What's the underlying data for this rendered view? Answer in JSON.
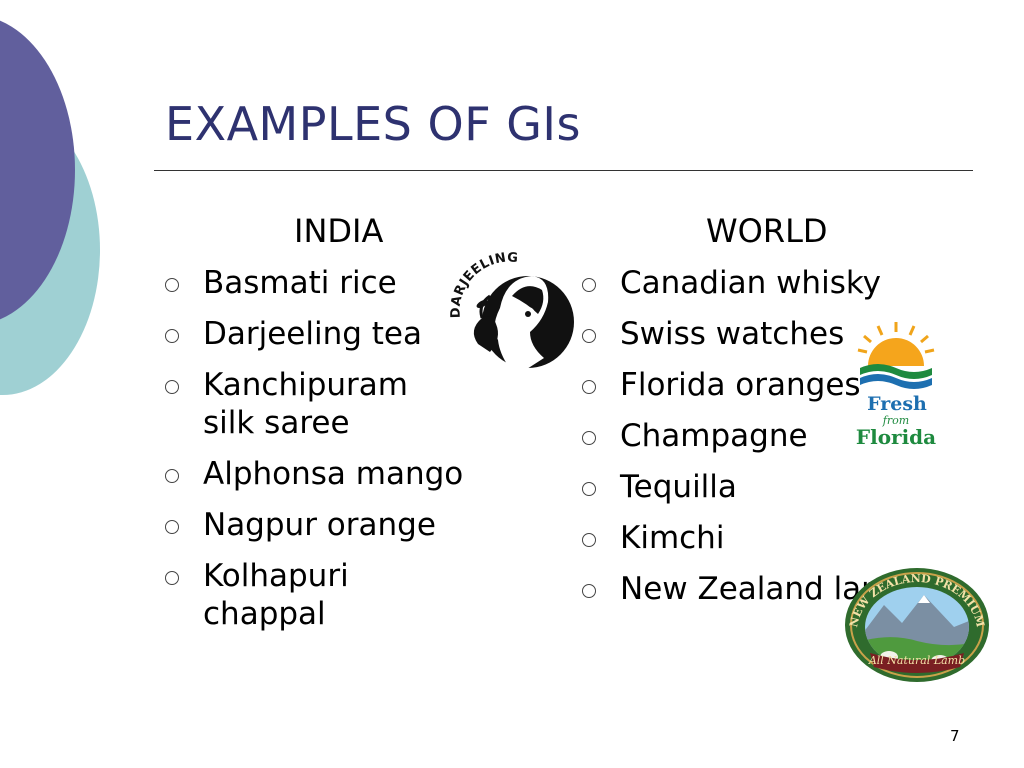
{
  "slide": {
    "title": "EXAMPLES OF GIs",
    "page_number": "7"
  },
  "india": {
    "heading": "INDIA",
    "items": [
      "Basmati rice",
      "Darjeeling tea",
      "Kanchipuram silk saree",
      "Alphonsa mango",
      "Nagpur orange",
      "Kolhapuri chappal"
    ]
  },
  "world": {
    "heading": "WORLD",
    "items": [
      "Canadian whisky",
      "Swiss watches",
      "Florida oranges",
      "Champagne",
      "Tequilla",
      "Kimchi",
      "New Zealand lamb"
    ]
  },
  "logos": {
    "darjeeling": {
      "text": "DARJEELING",
      "icon": "darjeeling-tea-logo"
    },
    "florida": {
      "line1": "Fresh",
      "line2": "from",
      "line3": "Florida",
      "icon": "fresh-from-florida-logo"
    },
    "nz_lamb": {
      "top_text": "NEW ZEALAND PREMIUM",
      "banner_text": "All Natural Lamb",
      "icon": "nz-lamb-seal"
    }
  },
  "colors": {
    "title": "#2e3270",
    "circle_purple": "#615f9d",
    "circle_teal": "#9fd0d3"
  }
}
